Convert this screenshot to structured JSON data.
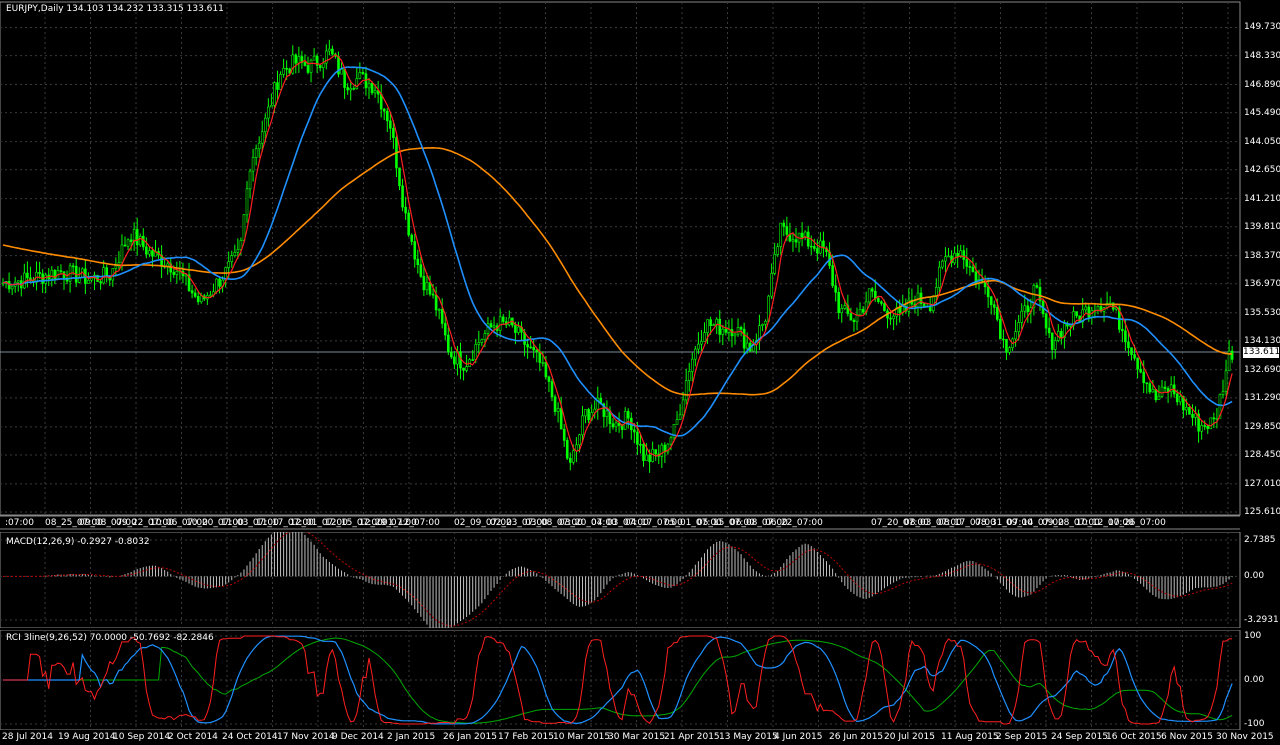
{
  "colors": {
    "bg": "#000000",
    "grid": "#3a3a3a",
    "bull": "#00ff00",
    "bear": "#00ff00",
    "ma_fast": "#ff2020",
    "ma_mid": "#1e90ff",
    "ma_slow": "#ff8c00",
    "macd_hist": "#c0c0c0",
    "macd_signal": "#c00000",
    "rci_short": "#ff2020",
    "rci_mid": "#1e90ff",
    "rci_long": "#00aa00"
  },
  "main": {
    "title": "EURJPY,Daily  134.103 134.232 133.315 133.611",
    "current_price": "133.611",
    "axis_labels": [
      "149.730",
      "148.330",
      "146.890",
      "145.490",
      "144.050",
      "142.650",
      "141.210",
      "139.810",
      "138.370",
      "136.970",
      "135.530",
      "134.130",
      "132.690",
      "131.290",
      "129.850",
      "128.450",
      "127.010",
      "125.610"
    ],
    "time_labels": [
      ":07:00",
      "08_25_07:00",
      "09_08_07:00",
      "09_22_07:00",
      "10_06_07:00",
      "10_20_07:00",
      "11_03_07:00",
      "11_17_07:00",
      "12_01_07:00",
      "12_15_07:00",
      "12_29_07:00",
      "01_12_07:00",
      "02_09_07:00",
      "02_23_07:00",
      "03_08_07:00",
      "03_20_07:00",
      "04_03_07:00",
      "04_17_07:00",
      "05_01_07:00",
      "05_15_07:00",
      "06_08_07:00",
      "06_22_07:00",
      "07_20_07:00",
      "08_03_07:00",
      "08_17_07:00",
      "08_31_07:00",
      "09_14_07:00",
      "09_28_07:00",
      "10_12_07:00",
      "10_26_07:00"
    ]
  },
  "macd": {
    "title": "MACD(12,26,9) -0.2927 -0.8032",
    "axis_labels": [
      "2.7385",
      "0.00",
      "-3.2931"
    ]
  },
  "rci": {
    "title": "RCI 3line(9,26,52) 70.0000 -50.7692 -82.2846",
    "axis_labels": [
      "100",
      "0.00",
      "-100"
    ]
  },
  "dates": [
    "28 Jul 2014",
    "19 Aug 2014",
    "10 Sep 2014",
    "2 Oct 2014",
    "24 Oct 2014",
    "17 Nov 2014",
    "9 Dec 2014",
    "2 Jan 2015",
    "26 Jan 2015",
    "17 Feb 2015",
    "10 Mar 2015",
    "30 Mar 2015",
    "21 Apr 2015",
    "13 May 2015",
    "4 Jun 2015",
    "26 Jun 2015",
    "20 Jul 2015",
    "11 Aug 2015",
    "2 Sep 2015",
    "24 Sep 2015",
    "16 Oct 2015",
    "6 Nov 2015",
    "30 Nov 2015"
  ],
  "chart_data": {
    "type": "candlestick",
    "symbol": "EURJPY",
    "timeframe": "Daily",
    "ylim": [
      125.61,
      150.4
    ],
    "close_keypoints": [
      [
        0,
        137.0
      ],
      [
        30,
        137.2
      ],
      [
        60,
        137.6
      ],
      [
        90,
        137.2
      ],
      [
        110,
        137.4
      ],
      [
        130,
        139.5
      ],
      [
        150,
        138.5
      ],
      [
        175,
        137.8
      ],
      [
        200,
        136.0
      ],
      [
        225,
        137.5
      ],
      [
        240,
        138.5
      ],
      [
        250,
        143.0
      ],
      [
        265,
        145.0
      ],
      [
        280,
        147.5
      ],
      [
        295,
        148.0
      ],
      [
        310,
        147.8
      ],
      [
        330,
        148.5
      ],
      [
        345,
        147.0
      ],
      [
        360,
        147.2
      ],
      [
        375,
        146.8
      ],
      [
        390,
        145.0
      ],
      [
        405,
        140.5
      ],
      [
        420,
        137.5
      ],
      [
        435,
        136.0
      ],
      [
        450,
        133.5
      ],
      [
        465,
        133.0
      ],
      [
        480,
        134.2
      ],
      [
        495,
        135.0
      ],
      [
        510,
        134.9
      ],
      [
        525,
        134.0
      ],
      [
        540,
        133.0
      ],
      [
        555,
        131.0
      ],
      [
        570,
        127.8
      ],
      [
        585,
        130.5
      ],
      [
        600,
        130.9
      ],
      [
        615,
        130.0
      ],
      [
        630,
        130.3
      ],
      [
        645,
        128.2
      ],
      [
        660,
        128.5
      ],
      [
        675,
        129.7
      ],
      [
        690,
        133.0
      ],
      [
        705,
        135.0
      ],
      [
        720,
        134.8
      ],
      [
        735,
        134.8
      ],
      [
        750,
        133.8
      ],
      [
        765,
        135.2
      ],
      [
        780,
        139.6
      ],
      [
        795,
        139.4
      ],
      [
        810,
        139.0
      ],
      [
        825,
        138.6
      ],
      [
        840,
        135.6
      ],
      [
        855,
        135.2
      ],
      [
        870,
        136.5
      ],
      [
        885,
        135.7
      ],
      [
        900,
        135.3
      ],
      [
        915,
        136.2
      ],
      [
        930,
        136.0
      ],
      [
        945,
        138.2
      ],
      [
        960,
        138.7
      ],
      [
        975,
        137.3
      ],
      [
        990,
        136.6
      ],
      [
        1005,
        133.8
      ],
      [
        1020,
        135.0
      ],
      [
        1035,
        136.7
      ],
      [
        1050,
        134.0
      ],
      [
        1065,
        134.9
      ],
      [
        1080,
        135.4
      ],
      [
        1095,
        136.0
      ],
      [
        1110,
        136.0
      ],
      [
        1125,
        134.5
      ],
      [
        1140,
        132.8
      ],
      [
        1155,
        131.2
      ],
      [
        1170,
        131.8
      ],
      [
        1185,
        130.8
      ],
      [
        1200,
        129.9
      ],
      [
        1215,
        130.1
      ],
      [
        1230,
        133.6
      ]
    ],
    "ma_fast": "red",
    "ma_mid": "blue",
    "ma_slow": "orange",
    "macd": {
      "last": -0.2927,
      "signal": -0.8032,
      "ylim": [
        -3.2931,
        2.7385
      ]
    },
    "rci": {
      "short": 70.0,
      "mid": -50.7692,
      "long": -82.2846,
      "ylim": [
        -100,
        100
      ]
    }
  }
}
